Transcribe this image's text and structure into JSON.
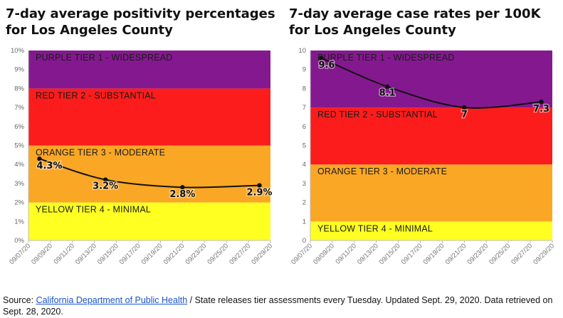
{
  "chart_data": [
    {
      "type": "line",
      "title": "7-day average positivity percentages for Los Angeles County",
      "x": [
        "09/07/20",
        "09/09/20",
        "09/11/20",
        "09/13/20",
        "09/15/20",
        "09/17/20",
        "09/19/20",
        "09/21/20",
        "09/23/20",
        "09/25/20",
        "09/27/20",
        "09/29/20"
      ],
      "y_ticks": [
        "0%",
        "1%",
        "2%",
        "3%",
        "4%",
        "5%",
        "6%",
        "7%",
        "8%",
        "9%",
        "10%"
      ],
      "ylim": [
        0,
        10
      ],
      "bands": [
        {
          "label": "YELLOW TIER 4 - MINIMAL",
          "from": 0,
          "to": 2,
          "color": "#ffff22"
        },
        {
          "label": "ORANGE TIER 3 - MODERATE",
          "from": 2,
          "to": 5,
          "color": "#fba726"
        },
        {
          "label": "RED TIER 2 - SUBSTANTIAL",
          "from": 5,
          "to": 8,
          "color": "#fc1c1c"
        },
        {
          "label": "PURPLE TIER 1 - WIDESPREAD",
          "from": 8,
          "to": 10,
          "color": "#84198f"
        }
      ],
      "series": [
        {
          "points": [
            {
              "date": "09/08/20",
              "value": 4.3,
              "label": "4.3%"
            },
            {
              "date": "09/14/20",
              "value": 3.2,
              "label": "3.2%"
            },
            {
              "date": "09/21/20",
              "value": 2.8,
              "label": "2.8%"
            },
            {
              "date": "09/28/20",
              "value": 2.9,
              "label": "2.9%"
            }
          ]
        }
      ],
      "grid": false
    },
    {
      "type": "line",
      "title": "7-day average case rates per 100K for Los Angeles County",
      "x": [
        "09/07/20",
        "09/09/20",
        "09/11/20",
        "09/13/20",
        "09/15/20",
        "09/17/20",
        "09/19/20",
        "09/21/20",
        "09/23/20",
        "09/25/20",
        "09/27/20",
        "09/29/20"
      ],
      "y_ticks": [
        "0",
        "1",
        "2",
        "3",
        "4",
        "5",
        "6",
        "7",
        "8",
        "9",
        "10"
      ],
      "ylim": [
        0,
        10
      ],
      "bands": [
        {
          "label": "YELLOW TIER 4 - MINIMAL",
          "from": 0,
          "to": 1,
          "color": "#ffff22"
        },
        {
          "label": "ORANGE TIER 3 - MODERATE",
          "from": 1,
          "to": 4,
          "color": "#fba726"
        },
        {
          "label": "RED TIER 2 - SUBSTANTIAL",
          "from": 4,
          "to": 7,
          "color": "#fc1c1c"
        },
        {
          "label": "PURPLE TIER 1 - WIDESPREAD",
          "from": 7,
          "to": 10,
          "color": "#84198f"
        }
      ],
      "series": [
        {
          "points": [
            {
              "date": "09/08/20",
              "value": 9.6,
              "label": "9.6"
            },
            {
              "date": "09/14/20",
              "value": 8.1,
              "label": "8.1"
            },
            {
              "date": "09/21/20",
              "value": 7.0,
              "label": "7"
            },
            {
              "date": "09/28/20",
              "value": 7.3,
              "label": "7.3"
            }
          ]
        }
      ],
      "grid": false
    }
  ],
  "footer": {
    "prefix": "Source: ",
    "link": "California Department of Public Health",
    "suffix": " / State releases tier assessments every Tuesday. Updated Sept. 29, 2020. Data retrieved on Sept. 28, 2020."
  }
}
